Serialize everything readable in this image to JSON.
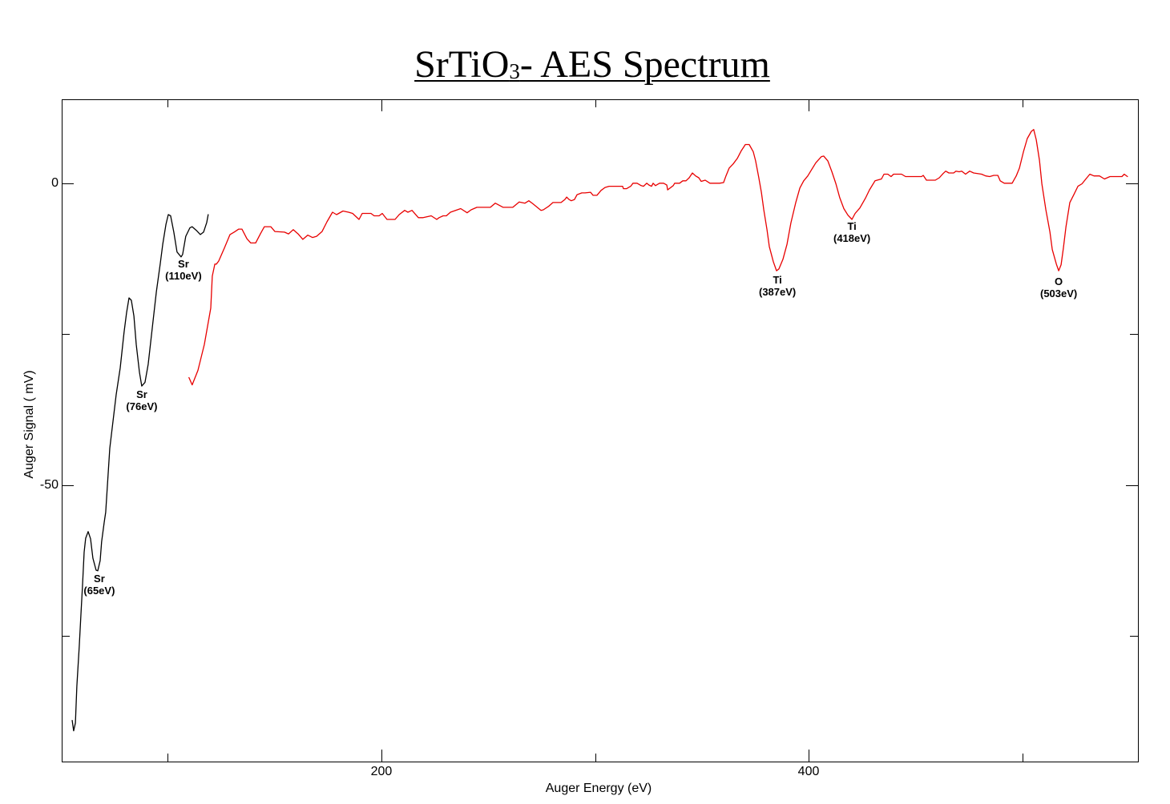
{
  "title": {
    "main": "SrTiO",
    "subscript": "3",
    "rest": "- AES Spectrum"
  },
  "chart_data": {
    "type": "line",
    "title": "SrTiO3- AES Spectrum",
    "xlabel": "Auger Energy (eV)",
    "ylabel": "Auger Signal ( mV)",
    "xlim": [
      50.3,
      554.2
    ],
    "ylim": [
      -95.8,
      13.9
    ],
    "grid": false,
    "legend": null,
    "xticks": {
      "major": [
        200,
        400
      ],
      "minor": [
        100,
        300,
        500
      ],
      "labels": [
        "200",
        "400"
      ]
    },
    "yticks": {
      "major": [
        0,
        -50
      ],
      "minor": [
        -25,
        -75
      ],
      "labels": [
        "0",
        "-50"
      ]
    },
    "series": [
      {
        "color": "#000000",
        "points": [
          [
            55.2,
            -89.0
          ],
          [
            55.9,
            -90.7
          ],
          [
            56.7,
            -89.4
          ],
          [
            57.4,
            -83.3
          ],
          [
            58.5,
            -76.7
          ],
          [
            59.3,
            -71.4
          ],
          [
            60.0,
            -66.8
          ],
          [
            60.8,
            -61.1
          ],
          [
            61.5,
            -58.8
          ],
          [
            62.7,
            -57.7
          ],
          [
            63.8,
            -58.9
          ],
          [
            64.9,
            -62.1
          ],
          [
            66.4,
            -64.1
          ],
          [
            67.2,
            -64.2
          ],
          [
            68.3,
            -62.5
          ],
          [
            69.0,
            -59.4
          ],
          [
            70.2,
            -56.2
          ],
          [
            70.9,
            -54.5
          ],
          [
            72.8,
            -43.9
          ],
          [
            75.8,
            -35.0
          ],
          [
            77.7,
            -30.6
          ],
          [
            79.5,
            -24.7
          ],
          [
            80.7,
            -21.4
          ],
          [
            81.8,
            -19.0
          ],
          [
            82.9,
            -19.4
          ],
          [
            84.1,
            -22.0
          ],
          [
            85.2,
            -26.7
          ],
          [
            86.7,
            -31.3
          ],
          [
            87.8,
            -33.6
          ],
          [
            89.3,
            -33.0
          ],
          [
            90.8,
            -30.0
          ],
          [
            92.7,
            -24.0
          ],
          [
            94.6,
            -18.0
          ],
          [
            96.4,
            -13.4
          ],
          [
            97.6,
            -10.1
          ],
          [
            99.1,
            -6.8
          ],
          [
            100.2,
            -5.2
          ],
          [
            101.3,
            -5.4
          ],
          [
            102.8,
            -8.1
          ],
          [
            104.3,
            -11.4
          ],
          [
            106.2,
            -12.2
          ],
          [
            106.9,
            -11.8
          ],
          [
            108.4,
            -8.8
          ],
          [
            110.3,
            -7.4
          ],
          [
            111.4,
            -7.2
          ],
          [
            113.3,
            -7.8
          ],
          [
            115.2,
            -8.5
          ],
          [
            116.7,
            -8.1
          ],
          [
            118.2,
            -6.5
          ],
          [
            118.9,
            -5.2
          ]
        ]
      },
      {
        "color": "#e80000",
        "points": [
          [
            109.9,
            -32.2
          ],
          [
            111.4,
            -33.4
          ],
          [
            114.1,
            -31.0
          ],
          [
            117.1,
            -26.7
          ],
          [
            120.1,
            -20.7
          ],
          [
            120.8,
            -15.4
          ],
          [
            122.0,
            -13.4
          ],
          [
            122.7,
            -13.4
          ],
          [
            123.8,
            -12.9
          ],
          [
            126.5,
            -10.7
          ],
          [
            129.1,
            -8.5
          ],
          [
            131.0,
            -8.1
          ],
          [
            133.2,
            -7.6
          ],
          [
            134.7,
            -7.6
          ],
          [
            137.0,
            -9.2
          ],
          [
            138.8,
            -9.9
          ],
          [
            141.1,
            -9.9
          ],
          [
            143.3,
            -8.4
          ],
          [
            145.2,
            -7.2
          ],
          [
            148.2,
            -7.2
          ],
          [
            150.1,
            -8.0
          ],
          [
            154.6,
            -8.1
          ],
          [
            156.5,
            -8.4
          ],
          [
            158.7,
            -7.7
          ],
          [
            161.0,
            -8.4
          ],
          [
            163.2,
            -9.3
          ],
          [
            165.5,
            -8.6
          ],
          [
            167.7,
            -9.0
          ],
          [
            169.6,
            -8.8
          ],
          [
            172.2,
            -8.0
          ],
          [
            174.5,
            -6.4
          ],
          [
            177.1,
            -4.8
          ],
          [
            179.0,
            -5.2
          ],
          [
            182.0,
            -4.6
          ],
          [
            184.6,
            -4.8
          ],
          [
            186.5,
            -5.0
          ],
          [
            189.5,
            -6.0
          ],
          [
            191.0,
            -5.0
          ],
          [
            195.1,
            -5.0
          ],
          [
            196.6,
            -5.4
          ],
          [
            198.9,
            -5.4
          ],
          [
            200.4,
            -5.0
          ],
          [
            202.6,
            -6.0
          ],
          [
            206.4,
            -6.0
          ],
          [
            208.3,
            -5.2
          ],
          [
            210.9,
            -4.5
          ],
          [
            212.4,
            -4.8
          ],
          [
            214.3,
            -4.5
          ],
          [
            217.3,
            -5.7
          ],
          [
            219.5,
            -5.7
          ],
          [
            223.3,
            -5.4
          ],
          [
            225.9,
            -6.0
          ],
          [
            227.0,
            -5.7
          ],
          [
            228.9,
            -5.4
          ],
          [
            230.4,
            -5.4
          ],
          [
            232.3,
            -4.8
          ],
          [
            237.1,
            -4.2
          ],
          [
            240.1,
            -4.9
          ],
          [
            242.0,
            -4.4
          ],
          [
            244.7,
            -4.0
          ],
          [
            251.0,
            -4.0
          ],
          [
            253.3,
            -3.3
          ],
          [
            257.0,
            -4.0
          ],
          [
            261.5,
            -4.0
          ],
          [
            264.5,
            -3.1
          ],
          [
            267.2,
            -3.3
          ],
          [
            269.0,
            -2.9
          ],
          [
            270.9,
            -3.4
          ],
          [
            274.7,
            -4.5
          ],
          [
            275.8,
            -4.4
          ],
          [
            278.4,
            -3.8
          ],
          [
            280.3,
            -3.2
          ],
          [
            284.1,
            -3.2
          ],
          [
            285.9,
            -2.7
          ],
          [
            286.7,
            -2.3
          ],
          [
            287.8,
            -2.7
          ],
          [
            288.9,
            -2.9
          ],
          [
            290.4,
            -2.7
          ],
          [
            291.6,
            -1.9
          ],
          [
            293.8,
            -1.6
          ],
          [
            295.3,
            -1.6
          ],
          [
            297.9,
            -1.5
          ],
          [
            299.1,
            -2.0
          ],
          [
            300.9,
            -2.0
          ],
          [
            302.8,
            -1.2
          ],
          [
            304.7,
            -0.7
          ],
          [
            306.6,
            -0.5
          ],
          [
            312.9,
            -0.5
          ],
          [
            313.3,
            -0.9
          ],
          [
            314.8,
            -0.9
          ],
          [
            316.7,
            -0.5
          ],
          [
            317.8,
            0.0
          ],
          [
            319.7,
            0.0
          ],
          [
            321.6,
            -0.4
          ],
          [
            322.7,
            -0.5
          ],
          [
            324.2,
            0.0
          ],
          [
            325.3,
            -0.3
          ],
          [
            326.5,
            -0.5
          ],
          [
            327.2,
            0.0
          ],
          [
            328.3,
            -0.4
          ],
          [
            330.2,
            0.0
          ],
          [
            332.1,
            0.0
          ],
          [
            333.6,
            -0.3
          ],
          [
            334.0,
            -1.1
          ],
          [
            336.6,
            -0.4
          ],
          [
            337.3,
            0.0
          ],
          [
            339.6,
            0.0
          ],
          [
            341.1,
            0.4
          ],
          [
            342.6,
            0.4
          ],
          [
            344.1,
            0.9
          ],
          [
            345.6,
            1.7
          ],
          [
            347.1,
            1.2
          ],
          [
            348.6,
            0.9
          ],
          [
            349.7,
            0.3
          ],
          [
            351.6,
            0.5
          ],
          [
            353.8,
            0.0
          ],
          [
            358.3,
            0.0
          ],
          [
            360.2,
            0.1
          ],
          [
            361.3,
            1.2
          ],
          [
            362.8,
            2.5
          ],
          [
            364.7,
            3.2
          ],
          [
            366.6,
            4.1
          ],
          [
            368.5,
            5.4
          ],
          [
            370.4,
            6.4
          ],
          [
            372.2,
            6.4
          ],
          [
            374.1,
            5.2
          ],
          [
            375.2,
            3.7
          ],
          [
            376.7,
            0.9
          ],
          [
            377.9,
            -1.5
          ],
          [
            379.0,
            -4.4
          ],
          [
            380.5,
            -7.7
          ],
          [
            381.6,
            -10.5
          ],
          [
            383.5,
            -13.0
          ],
          [
            385.0,
            -14.5
          ],
          [
            386.1,
            -14.2
          ],
          [
            388.0,
            -12.6
          ],
          [
            389.9,
            -10.1
          ],
          [
            391.7,
            -6.6
          ],
          [
            394.0,
            -3.2
          ],
          [
            395.9,
            -0.8
          ],
          [
            397.7,
            0.4
          ],
          [
            399.6,
            1.2
          ],
          [
            401.5,
            2.3
          ],
          [
            403.4,
            3.4
          ],
          [
            406.0,
            4.4
          ],
          [
            407.1,
            4.5
          ],
          [
            409.0,
            3.7
          ],
          [
            410.9,
            1.9
          ],
          [
            412.8,
            -0.1
          ],
          [
            414.6,
            -2.4
          ],
          [
            416.5,
            -4.2
          ],
          [
            418.4,
            -5.3
          ],
          [
            420.3,
            -6.0
          ],
          [
            421.8,
            -5.0
          ],
          [
            424.0,
            -4.1
          ],
          [
            426.6,
            -2.5
          ],
          [
            428.5,
            -1.1
          ],
          [
            431.1,
            0.4
          ],
          [
            434.1,
            0.7
          ],
          [
            435.3,
            1.5
          ],
          [
            437.1,
            1.5
          ],
          [
            438.6,
            1.1
          ],
          [
            439.8,
            1.5
          ],
          [
            443.5,
            1.5
          ],
          [
            445.4,
            1.1
          ],
          [
            452.9,
            1.1
          ],
          [
            453.7,
            1.3
          ],
          [
            455.2,
            0.5
          ],
          [
            459.3,
            0.5
          ],
          [
            461.2,
            0.9
          ],
          [
            463.0,
            1.6
          ],
          [
            464.2,
            2.0
          ],
          [
            465.7,
            1.7
          ],
          [
            467.9,
            1.7
          ],
          [
            469.0,
            2.0
          ],
          [
            470.5,
            1.9
          ],
          [
            471.7,
            2.0
          ],
          [
            473.5,
            1.5
          ],
          [
            475.4,
            2.0
          ],
          [
            477.3,
            1.7
          ],
          [
            481.0,
            1.5
          ],
          [
            482.9,
            1.2
          ],
          [
            484.8,
            1.1
          ],
          [
            486.7,
            1.3
          ],
          [
            488.6,
            1.3
          ],
          [
            489.7,
            0.4
          ],
          [
            491.6,
            0.0
          ],
          [
            495.3,
            0.0
          ],
          [
            497.2,
            1.2
          ],
          [
            498.7,
            2.5
          ],
          [
            500.6,
            5.2
          ],
          [
            502.4,
            7.4
          ],
          [
            504.3,
            8.6
          ],
          [
            505.4,
            8.9
          ],
          [
            506.6,
            7.2
          ],
          [
            508.1,
            3.8
          ],
          [
            509.2,
            -0.1
          ],
          [
            511.1,
            -4.4
          ],
          [
            513.0,
            -8.1
          ],
          [
            514.1,
            -11.0
          ],
          [
            516.0,
            -13.4
          ],
          [
            517.1,
            -14.5
          ],
          [
            518.2,
            -13.5
          ],
          [
            519.3,
            -10.7
          ],
          [
            520.5,
            -7.2
          ],
          [
            522.3,
            -3.2
          ],
          [
            524.2,
            -1.9
          ],
          [
            526.1,
            -0.5
          ],
          [
            528.0,
            -0.1
          ],
          [
            529.8,
            0.7
          ],
          [
            531.7,
            1.5
          ],
          [
            533.6,
            1.2
          ],
          [
            536.2,
            1.2
          ],
          [
            538.5,
            0.7
          ],
          [
            541.1,
            1.1
          ],
          [
            546.7,
            1.1
          ],
          [
            547.8,
            1.5
          ],
          [
            549.3,
            1.1
          ]
        ]
      }
    ],
    "annotations": [
      {
        "element": "Sr",
        "energy": "(65eV)",
        "x": 67.9,
        "y": -64.5
      },
      {
        "element": "Sr",
        "energy": "(76eV)",
        "x": 87.8,
        "y": -34.0
      },
      {
        "element": "Sr",
        "energy": "(110eV)",
        "x": 107.3,
        "y": -12.3
      },
      {
        "element": "Ti",
        "energy": "(387eV)",
        "x": 385.4,
        "y": -15.0
      },
      {
        "element": "Ti",
        "energy": "(418eV)",
        "x": 420.3,
        "y": -6.1
      },
      {
        "element": "O",
        "energy": "(503eV)",
        "x": 517.1,
        "y": -15.3
      }
    ]
  }
}
